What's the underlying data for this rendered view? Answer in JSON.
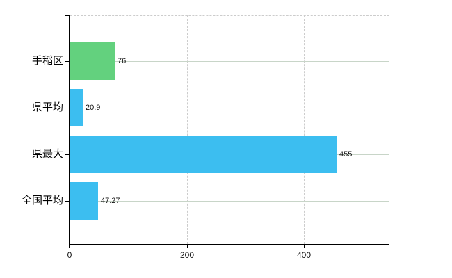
{
  "chart_data": {
    "type": "bar",
    "orientation": "horizontal",
    "title": "",
    "xlabel": "",
    "ylabel": "",
    "categories": [
      "手稲区",
      "県平均",
      "県最大",
      "全国平均"
    ],
    "values": [
      76,
      20.9,
      455,
      47.27
    ],
    "value_labels": [
      "76",
      "20.9",
      "455",
      "47.27"
    ],
    "bar_colors": [
      "#63d17e",
      "#3cbef0",
      "#3cbef0",
      "#3cbef0"
    ],
    "x_ticks": [
      {
        "value": 0,
        "label": "0"
      },
      {
        "value": 200,
        "label": "200"
      },
      {
        "value": 400,
        "label": "400"
      }
    ],
    "xlim": [
      0,
      546
    ],
    "grid": true,
    "legend": null,
    "colors": {
      "axis": "#000000",
      "grid_horizontal": "#c8d5c8",
      "grid_vertical": "#cccccc",
      "top_border": "#cccccc",
      "text": "#000000"
    }
  }
}
